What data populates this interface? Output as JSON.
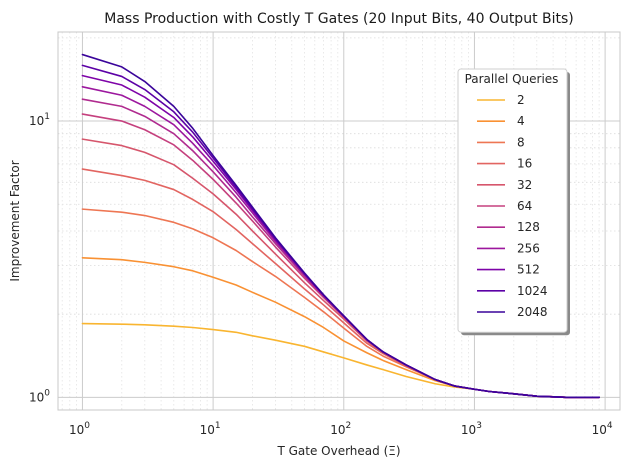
{
  "chart_data": {
    "type": "line",
    "title": "Mass Production with Costly T Gates (20 Input Bits, 40 Output Bits)",
    "xlabel": "T Gate Overhead (Ξ)",
    "ylabel": "Improvement Factor",
    "xscale": "log",
    "yscale": "log",
    "xlim": [
      0.65,
      13000
    ],
    "ylim": [
      0.9,
      21
    ],
    "x_ticks": [
      {
        "value": 1,
        "base": "10",
        "exp": "0"
      },
      {
        "value": 10,
        "base": "10",
        "exp": "1"
      },
      {
        "value": 100,
        "base": "10",
        "exp": "2"
      },
      {
        "value": 1000,
        "base": "10",
        "exp": "3"
      },
      {
        "value": 10000,
        "base": "10",
        "exp": "4"
      }
    ],
    "y_ticks": [
      {
        "value": 1,
        "base": "10",
        "exp": "0"
      },
      {
        "value": 10,
        "base": "10",
        "exp": "1"
      }
    ],
    "grid": true,
    "legend_title": "Parallel Queries",
    "legend_position": "upper-right",
    "x": [
      1,
      2,
      3,
      5,
      7,
      10,
      15,
      20,
      30,
      50,
      70,
      100,
      150,
      200,
      300,
      500,
      700,
      1000,
      1300,
      2000,
      3000,
      5000,
      9000
    ],
    "series": [
      {
        "name": "2",
        "color": "#f9b530",
        "values": [
          1.85,
          1.84,
          1.83,
          1.81,
          1.79,
          1.76,
          1.72,
          1.67,
          1.61,
          1.53,
          1.46,
          1.39,
          1.31,
          1.26,
          1.19,
          1.12,
          1.09,
          1.07,
          1.05,
          1.03,
          1.01,
          1.0,
          1.0
        ]
      },
      {
        "name": "4",
        "color": "#f99133",
        "values": [
          3.2,
          3.15,
          3.08,
          2.97,
          2.87,
          2.72,
          2.55,
          2.4,
          2.21,
          1.96,
          1.79,
          1.6,
          1.45,
          1.36,
          1.26,
          1.15,
          1.1,
          1.07,
          1.05,
          1.03,
          1.01,
          1.0,
          1.0
        ]
      },
      {
        "name": "8",
        "color": "#ee7653",
        "values": [
          4.8,
          4.68,
          4.55,
          4.3,
          4.07,
          3.78,
          3.4,
          3.1,
          2.74,
          2.3,
          2.04,
          1.78,
          1.53,
          1.41,
          1.29,
          1.16,
          1.1,
          1.07,
          1.05,
          1.03,
          1.01,
          1.0,
          1.0
        ]
      },
      {
        "name": "16",
        "color": "#e26561",
        "values": [
          6.7,
          6.35,
          6.1,
          5.65,
          5.2,
          4.7,
          4.05,
          3.6,
          3.05,
          2.47,
          2.16,
          1.86,
          1.57,
          1.44,
          1.3,
          1.16,
          1.1,
          1.07,
          1.05,
          1.03,
          1.01,
          1.0,
          1.0
        ]
      },
      {
        "name": "32",
        "color": "#d6566c",
        "values": [
          8.6,
          8.15,
          7.7,
          6.95,
          6.2,
          5.45,
          4.6,
          4.0,
          3.3,
          2.6,
          2.24,
          1.92,
          1.6,
          1.45,
          1.3,
          1.16,
          1.1,
          1.07,
          1.05,
          1.03,
          1.01,
          1.0,
          1.0
        ]
      },
      {
        "name": "64",
        "color": "#c5407e",
        "values": [
          10.6,
          10.0,
          9.3,
          8.2,
          7.2,
          6.15,
          5.05,
          4.35,
          3.5,
          2.7,
          2.3,
          1.95,
          1.61,
          1.46,
          1.31,
          1.16,
          1.1,
          1.07,
          1.05,
          1.03,
          1.01,
          1.0,
          1.0
        ]
      },
      {
        "name": "128",
        "color": "#b02b8f",
        "values": [
          12.0,
          11.3,
          10.4,
          9.0,
          7.8,
          6.55,
          5.3,
          4.5,
          3.6,
          2.75,
          2.32,
          1.96,
          1.62,
          1.46,
          1.31,
          1.16,
          1.1,
          1.07,
          1.05,
          1.03,
          1.01,
          1.0,
          1.0
        ]
      },
      {
        "name": "256",
        "color": "#9c179e",
        "values": [
          13.3,
          12.4,
          11.3,
          9.7,
          8.3,
          6.9,
          5.5,
          4.65,
          3.67,
          2.78,
          2.33,
          1.97,
          1.62,
          1.46,
          1.31,
          1.16,
          1.1,
          1.07,
          1.05,
          1.03,
          1.01,
          1.0,
          1.0
        ]
      },
      {
        "name": "512",
        "color": "#7e03a8",
        "values": [
          14.6,
          13.5,
          12.2,
          10.3,
          8.75,
          7.15,
          5.65,
          4.75,
          3.72,
          2.8,
          2.34,
          1.97,
          1.62,
          1.46,
          1.31,
          1.16,
          1.1,
          1.07,
          1.05,
          1.03,
          1.01,
          1.0,
          1.0
        ]
      },
      {
        "name": "1024",
        "color": "#5c01a6",
        "values": [
          15.9,
          14.5,
          13.0,
          10.8,
          9.1,
          7.35,
          5.75,
          4.82,
          3.75,
          2.81,
          2.35,
          1.97,
          1.62,
          1.46,
          1.31,
          1.16,
          1.1,
          1.07,
          1.05,
          1.03,
          1.01,
          1.0,
          1.0
        ]
      },
      {
        "name": "2048",
        "color": "#3a049a",
        "values": [
          17.4,
          15.7,
          13.9,
          11.3,
          9.4,
          7.5,
          5.85,
          4.88,
          3.78,
          2.82,
          2.35,
          1.97,
          1.62,
          1.46,
          1.31,
          1.16,
          1.1,
          1.07,
          1.05,
          1.03,
          1.01,
          1.0,
          1.0
        ]
      }
    ]
  }
}
